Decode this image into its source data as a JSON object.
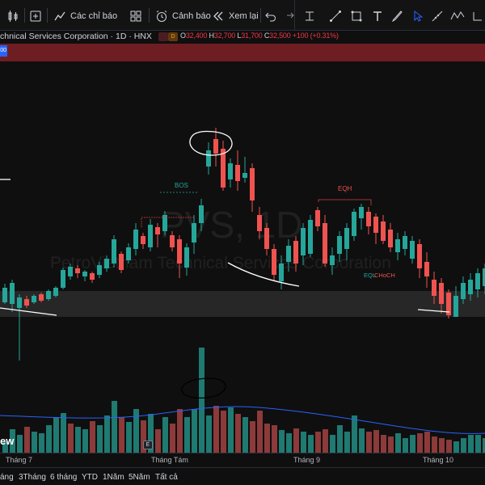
{
  "toolbar": {
    "indicators_label": "Các chỉ báo",
    "alerts_label": "Cảnh báo",
    "replay_label": "Xem lại"
  },
  "symbol": {
    "name": "chnical Services Corporation · 1D · HNX",
    "dot1": "",
    "dot2": "D",
    "o_label": "O",
    "o_value": "32,400",
    "h_label": "H",
    "h_value": "32,700",
    "l_label": "L",
    "l_value": "31,700",
    "c_label": "C",
    "c_value": "32,500",
    "change": "+100 (+0.31%)",
    "side_tag": "00"
  },
  "watermark": {
    "ticker": "PVS, 1D",
    "company": "PetroVietnam Technical Services Corporation"
  },
  "annotations": {
    "bos": "BOS",
    "eqh": "EQH",
    "eql": "EQL",
    "choch": "CHoCH"
  },
  "chart_data": {
    "type": "candlestick",
    "x_labels": [
      "Tháng 7",
      "Tháng Tám",
      "Tháng 9",
      "Tháng 10"
    ],
    "colors": {
      "up": "#26a69a",
      "down": "#ef5350",
      "volume_up": "#1f7a72",
      "volume_down": "#8c3a3a",
      "ma": "#2962ff"
    }
  },
  "bottom": {
    "view_label": "ew",
    "e_badge": "E"
  },
  "ranges": [
    "áng",
    "3Tháng",
    "6 tháng",
    "YTD",
    "1Năm",
    "5Năm",
    "Tất cả"
  ],
  "colors": {
    "background": "#0f0f0f",
    "header_band": "#6e1d22",
    "accent_blue": "#2962ff"
  }
}
